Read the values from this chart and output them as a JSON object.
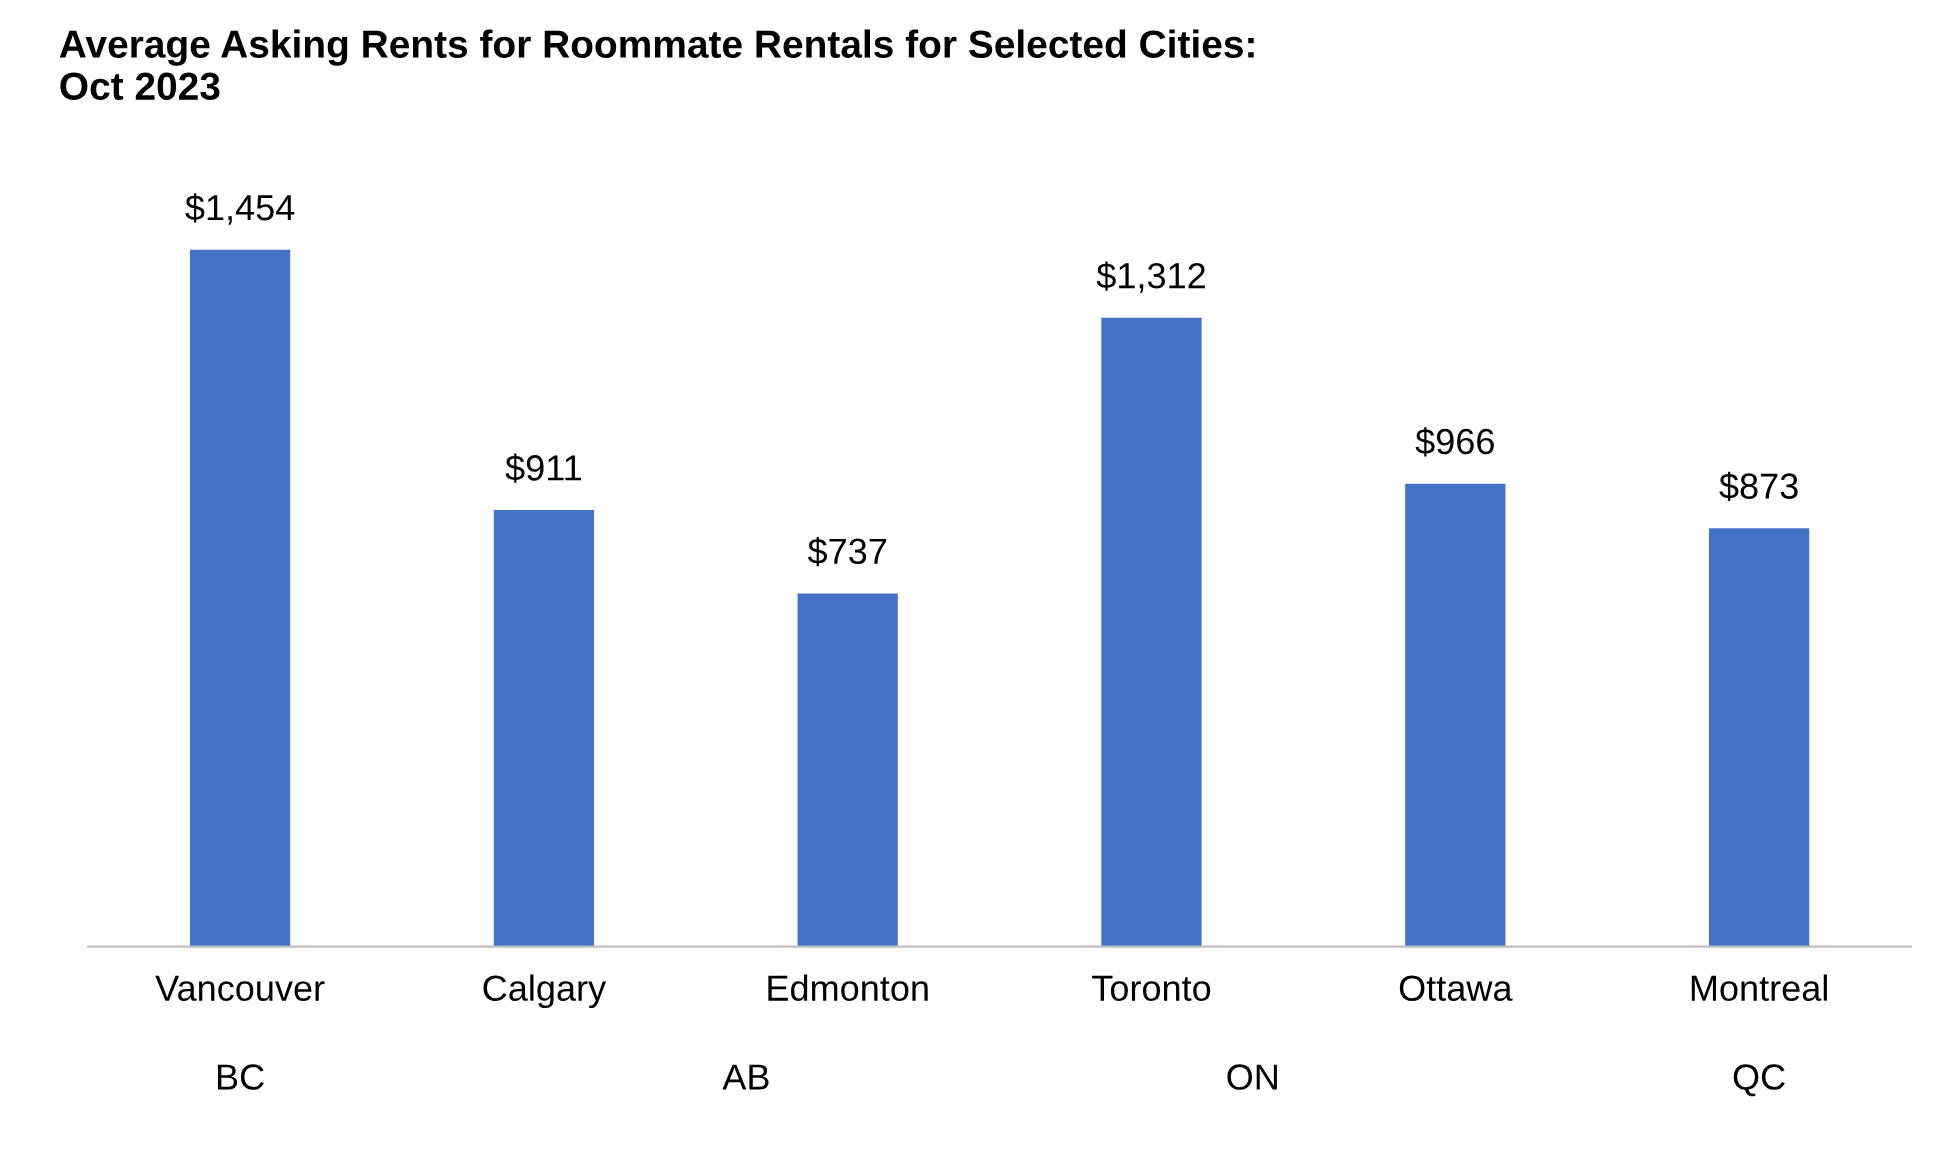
{
  "chart_data": {
    "type": "bar",
    "title": "Average Asking Rents for Roommate Rentals for Selected Cities:\nOct 2023",
    "categories": [
      "Vancouver",
      "Calgary",
      "Edmonton",
      "Toronto",
      "Ottawa",
      "Montreal"
    ],
    "values": [
      1454,
      911,
      737,
      1312,
      966,
      873
    ],
    "value_labels": [
      "$1,454",
      "$911",
      "$737",
      "$1,312",
      "$966",
      "$873"
    ],
    "color": "#4472c4",
    "grid": false,
    "legend": false,
    "annotations": [
      "BC",
      "AB",
      "ON",
      "QC"
    ]
  }
}
